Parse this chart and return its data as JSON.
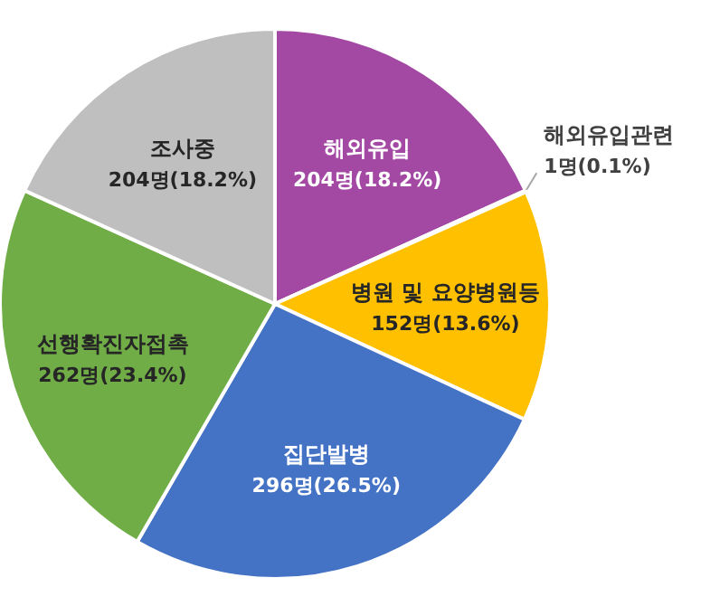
{
  "chart_data": {
    "type": "pie",
    "categories": [
      "해외유입",
      "해외유입관련",
      "병원 및 요양병원등",
      "집단발병",
      "선행확진자접촉",
      "조사중"
    ],
    "values": [
      204,
      1,
      152,
      296,
      262,
      204
    ],
    "value_labels": [
      "204명(18.2%)",
      "1명(0.1%)",
      "152명(13.6%)",
      "296명(26.5%)",
      "262명(23.4%)",
      "204명(18.2%)"
    ],
    "colors": [
      "#a349a4",
      "#ed7d31",
      "#ffc000",
      "#4472c4",
      "#70ad47",
      "#bfbfbf"
    ]
  }
}
